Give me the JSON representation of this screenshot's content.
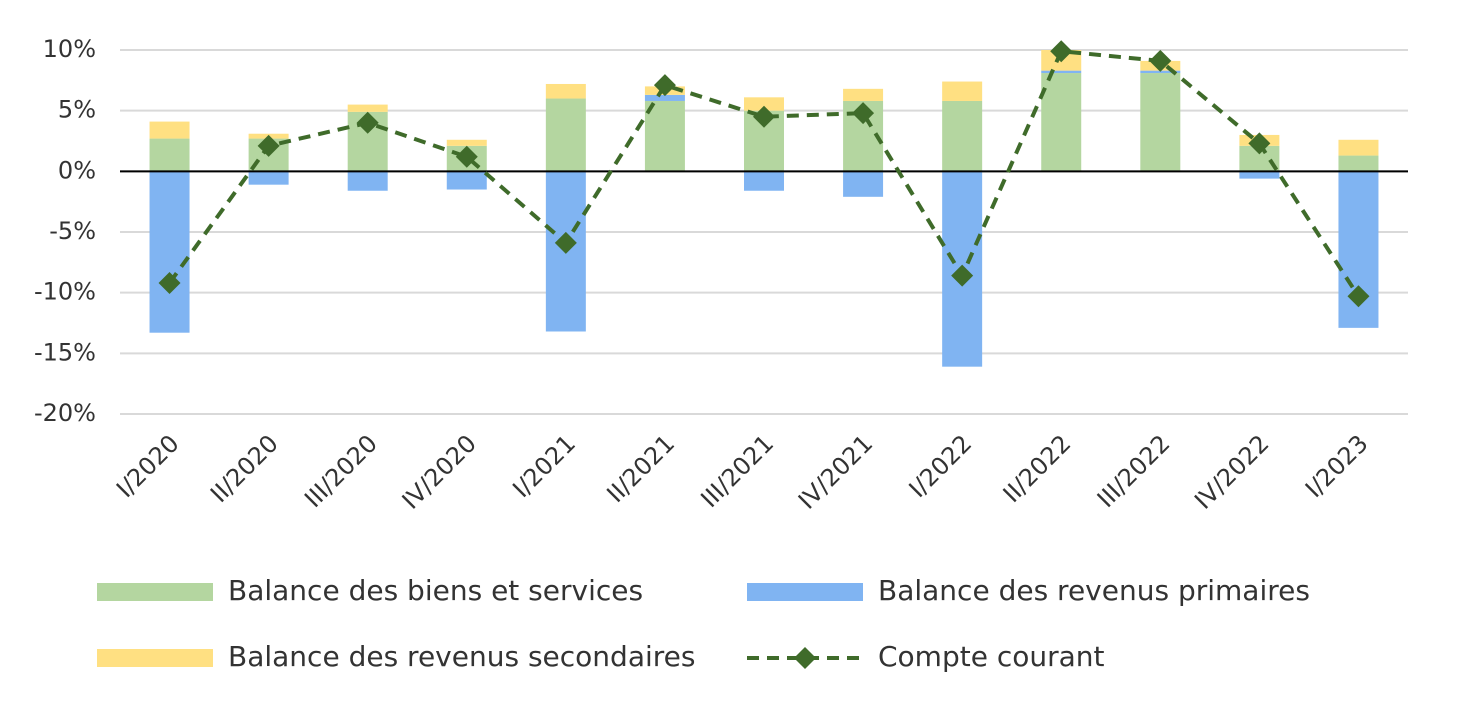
{
  "chart_data": {
    "type": "bar",
    "stacked": true,
    "categories": [
      "I/2020",
      "II/2020",
      "III/2020",
      "IV/2020",
      "I/2021",
      "II/2021",
      "III/2021",
      "IV/2021",
      "I/2022",
      "II/2022",
      "III/2022",
      "IV/2022",
      "I/2023"
    ],
    "series": [
      {
        "name": "Balance des biens et services",
        "type": "bar",
        "color": "#b4d6a0",
        "values": [
          2.7,
          2.7,
          4.9,
          2.1,
          6.0,
          5.8,
          5.0,
          5.8,
          5.8,
          8.1,
          8.1,
          2.1,
          1.3
        ]
      },
      {
        "name": "Balance des revenus primaires",
        "type": "bar",
        "color": "#80b4f2",
        "values": [
          -13.3,
          -1.1,
          -1.6,
          -1.5,
          -13.2,
          0.5,
          -1.6,
          -2.1,
          -16.1,
          0.2,
          0.2,
          -0.6,
          -12.9
        ]
      },
      {
        "name": "Balance des revenus secondaires",
        "type": "bar",
        "color": "#ffe082",
        "values": [
          1.4,
          0.4,
          0.6,
          0.5,
          1.2,
          0.7,
          1.1,
          1.0,
          1.6,
          1.7,
          0.8,
          0.9,
          1.3
        ]
      },
      {
        "name": "Compte courant",
        "type": "line",
        "color": "#3f6b2a",
        "dashed": true,
        "marker": "diamond",
        "values": [
          -9.2,
          2.1,
          4.0,
          1.2,
          -5.9,
          7.1,
          4.5,
          4.8,
          -8.6,
          9.9,
          9.1,
          2.3,
          -10.3
        ]
      }
    ],
    "ylim": [
      -20,
      10
    ],
    "yticks": [
      {
        "value": -20,
        "label": "-20%"
      },
      {
        "value": -15,
        "label": "-15%"
      },
      {
        "value": -10,
        "label": "-10%"
      },
      {
        "value": -5,
        "label": "-5%"
      },
      {
        "value": 0,
        "label": "0%"
      },
      {
        "value": 5,
        "label": "5%"
      },
      {
        "value": 10,
        "label": "10%"
      }
    ],
    "grid": true,
    "legend": "bottom"
  }
}
